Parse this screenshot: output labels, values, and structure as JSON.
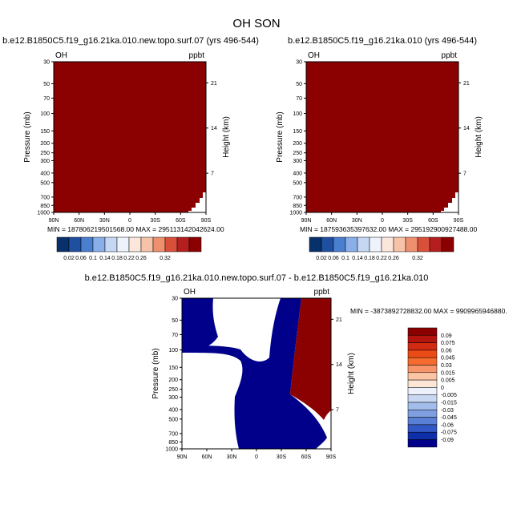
{
  "figure": {
    "title": "OH SON"
  },
  "colors": {
    "dark_red": "#8b0000",
    "dark_blue": "#00008b",
    "background": "#ffffff"
  },
  "chart_data": [
    {
      "type": "heatmap",
      "title": "b.e12.B1850C5.f19_g16.21ka.010.new.topo.surf.07 (yrs 496-544)",
      "left_label": "OH",
      "right_label": "ppbt",
      "xlabel": "",
      "ylabel": "Pressure (mb)",
      "ylabel_right": "Height (km)",
      "x_ticks": [
        "90N",
        "60N",
        "30N",
        "0",
        "30S",
        "60S",
        "90S"
      ],
      "y_ticks": [
        "30",
        "50",
        "70",
        "100",
        "150",
        "200",
        "250",
        "300",
        "400",
        "500",
        "700",
        "850",
        "1000"
      ],
      "y_ticks_right": [
        "21",
        "14",
        "7"
      ],
      "ylim": [
        1000,
        30
      ],
      "y_scale": "log",
      "stats": "MIN = 187806219501568.00   MAX = 295113142042624.00",
      "fill": "uniform maximum color (dark red)",
      "colorbar": [
        "0.02",
        "0.06",
        "0.1",
        "0.14",
        "0.18",
        "0.22",
        "0.26",
        "0.32"
      ]
    },
    {
      "type": "heatmap",
      "title": "b.e12.B1850C5.f19_g16.21ka.010 (yrs 496-544)",
      "left_label": "OH",
      "right_label": "ppbt",
      "xlabel": "",
      "ylabel": "Pressure (mb)",
      "ylabel_right": "Height (km)",
      "x_ticks": [
        "90N",
        "60N",
        "30N",
        "0",
        "30S",
        "60S",
        "90S"
      ],
      "y_ticks": [
        "30",
        "50",
        "70",
        "100",
        "150",
        "200",
        "250",
        "300",
        "400",
        "500",
        "700",
        "850",
        "1000"
      ],
      "y_ticks_right": [
        "21",
        "14",
        "7"
      ],
      "ylim": [
        1000,
        30
      ],
      "y_scale": "log",
      "stats": "MIN = 187593635397632.00   MAX = 295192900927488.00",
      "fill": "uniform maximum color (dark red)",
      "colorbar": [
        "0.02",
        "0.06",
        "0.1",
        "0.14",
        "0.18",
        "0.22",
        "0.26",
        "0.32"
      ]
    },
    {
      "type": "heatmap",
      "title": "b.e12.B1850C5.f19_g16.21ka.010.new.topo.surf.07 - b.e12.B1850C5.f19_g16.21ka.010",
      "left_label": "OH",
      "right_label": "ppbt",
      "xlabel": "",
      "ylabel": "Pressure (mb)",
      "ylabel_right": "Height (km)",
      "x_ticks": [
        "90N",
        "60N",
        "30N",
        "0",
        "30S",
        "60S",
        "90S"
      ],
      "y_ticks": [
        "30",
        "50",
        "70",
        "100",
        "150",
        "200",
        "250",
        "300",
        "400",
        "500",
        "700",
        "850",
        "1000"
      ],
      "y_ticks_right": [
        "21",
        "14",
        "7"
      ],
      "ylim": [
        1000,
        30
      ],
      "y_scale": "log",
      "stats": "MIN = -3873892728832.00  MAX = 9909965946880.",
      "fill": "regions of minimum (dark blue), maximum (dark red) and near zero (white)",
      "colorbar": [
        "0.09",
        "0.075",
        "0.06",
        "0.045",
        "0.03",
        "0.015",
        "0.005",
        "0",
        "-0.005",
        "-0.015",
        "-0.03",
        "-0.045",
        "-0.06",
        "-0.075",
        "-0.09"
      ]
    }
  ]
}
